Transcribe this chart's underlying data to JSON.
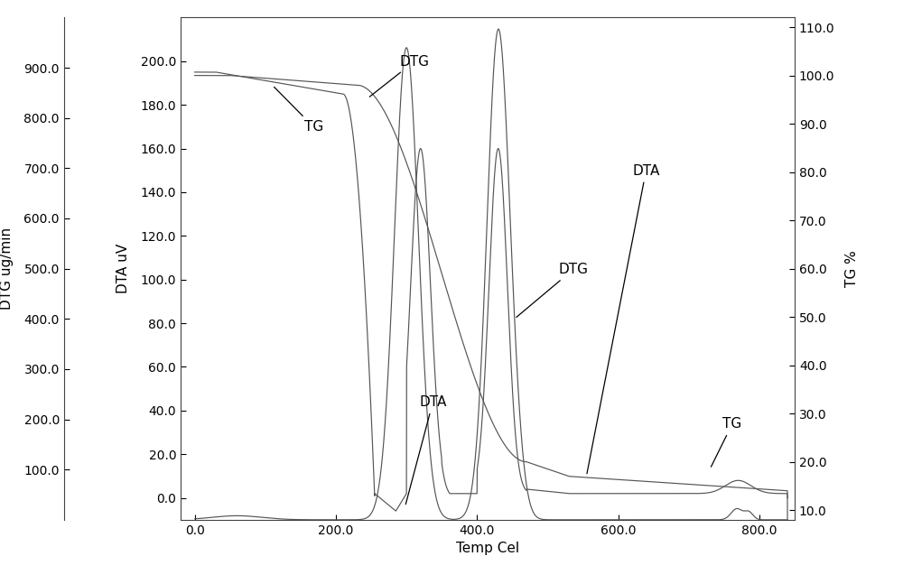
{
  "xlabel": "Temp Cel",
  "ylabel_left1": "DTG ug/min",
  "ylabel_left2": "DTA uV",
  "ylabel_right": "TG %",
  "xlim": [
    -20,
    850
  ],
  "xticks": [
    0.0,
    200.0,
    400.0,
    600.0,
    800.0
  ],
  "xtick_labels": [
    "0.0",
    "200.0",
    "400.0",
    "600.0",
    "800.0"
  ],
  "dtg_ylim": [
    0,
    1000
  ],
  "dtg_yticks": [
    100.0,
    200.0,
    300.0,
    400.0,
    500.0,
    600.0,
    700.0,
    800.0,
    900.0
  ],
  "dtg_ytick_labels": [
    "100.0",
    "200.0",
    "300.0",
    "400.0",
    "500.0",
    "600.0",
    "700.0",
    "800.0",
    "900.0"
  ],
  "dta_ylim": [
    -10,
    220
  ],
  "dta_yticks": [
    0.0,
    20.0,
    40.0,
    60.0,
    80.0,
    100.0,
    120.0,
    140.0,
    160.0,
    180.0,
    200.0
  ],
  "dta_ytick_labels": [
    "0.0",
    "20.0",
    "40.0",
    "60.0",
    "80.0",
    "100.0",
    "120.0",
    "140.0",
    "160.0",
    "180.0",
    "200.0"
  ],
  "tg_ylim": [
    8,
    112
  ],
  "tg_yticks": [
    10.0,
    20.0,
    30.0,
    40.0,
    50.0,
    60.0,
    70.0,
    80.0,
    90.0,
    100.0,
    110.0
  ],
  "tg_ytick_labels": [
    "10.0",
    "20.0",
    "30.0",
    "40.0",
    "50.0",
    "60.0",
    "70.0",
    "80.0",
    "90.0",
    "100.0",
    "110.0"
  ],
  "line_color": "#555555",
  "background_color": "#ffffff"
}
